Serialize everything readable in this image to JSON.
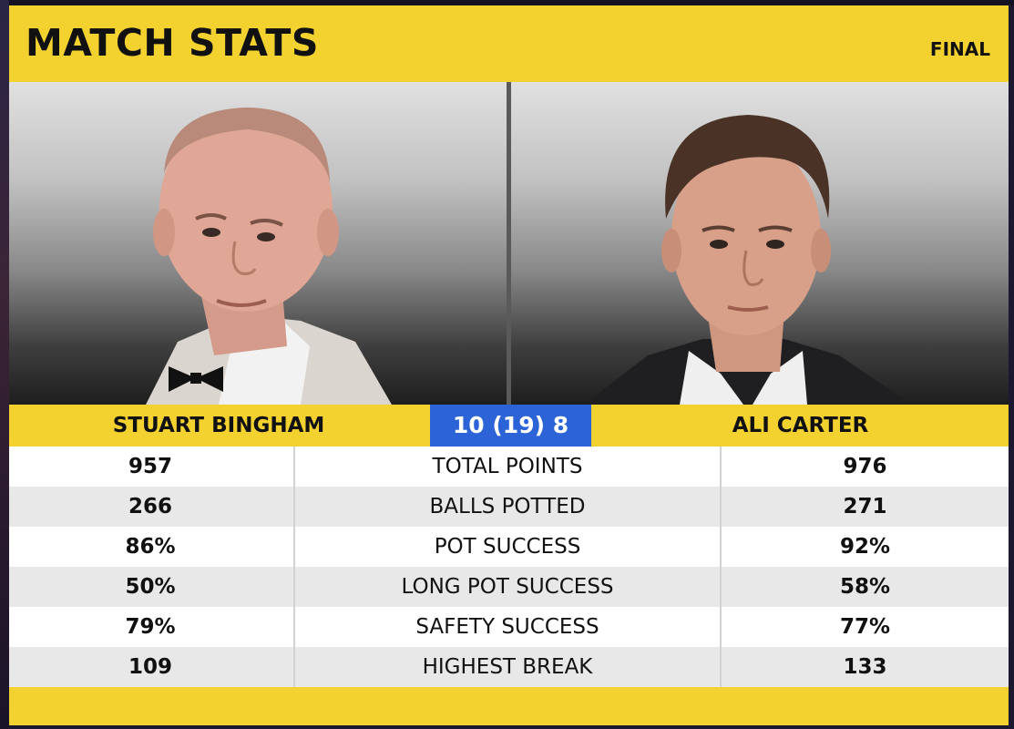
{
  "header": {
    "title": "MATCH STATS",
    "stage": "FINAL"
  },
  "players": {
    "left": {
      "name": "STUART BINGHAM"
    },
    "right": {
      "name": "ALI CARTER"
    }
  },
  "score": "10 (19)  8",
  "stats": [
    {
      "label": "TOTAL POINTS",
      "left": "957",
      "right": "976"
    },
    {
      "label": "BALLS POTTED",
      "left": "266",
      "right": "271"
    },
    {
      "label": "POT SUCCESS",
      "left": "86%",
      "right": "92%"
    },
    {
      "label": "LONG POT SUCCESS",
      "left": "50%",
      "right": "58%"
    },
    {
      "label": "SAFETY SUCCESS",
      "left": "79%",
      "right": "77%"
    },
    {
      "label": "HIGHEST BREAK",
      "left": "109",
      "right": "133"
    }
  ],
  "colors": {
    "accent": "#f3d230",
    "score_box": "#2c64d8",
    "row_shade": "#e8e8e8"
  }
}
